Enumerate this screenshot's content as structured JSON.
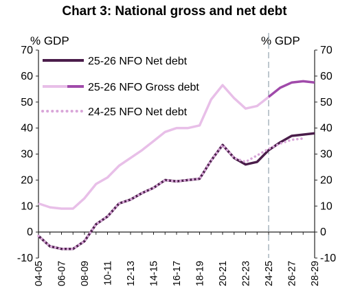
{
  "chart_data": {
    "type": "line",
    "title": "Chart 3: National gross and net debt",
    "y_unit_left": "% GDP",
    "y_unit_right": "% GDP",
    "ylim": [
      -10,
      70
    ],
    "yticks": [
      70,
      60,
      50,
      40,
      30,
      20,
      10,
      0,
      -10
    ],
    "x": [
      "04-05",
      "05-06",
      "06-07",
      "07-08",
      "08-09",
      "09-10",
      "10-11",
      "11-12",
      "12-13",
      "13-14",
      "14-15",
      "15-16",
      "16-17",
      "17-18",
      "18-19",
      "19-20",
      "20-21",
      "21-22",
      "22-23",
      "23-24",
      "24-25",
      "25-26",
      "26-27",
      "27-28",
      "28-29"
    ],
    "x_tick_labels": [
      "04-05",
      "06-07",
      "08-09",
      "10-11",
      "12-13",
      "14-15",
      "16-17",
      "18-19",
      "20-21",
      "22-23",
      "24-25",
      "26-27",
      "28-29"
    ],
    "forecast_divider_at": "24-25",
    "legend_placement": "top-left",
    "grid": false,
    "series": [
      {
        "name": "25-26 NFO Net debt",
        "color": "#4a1d4a",
        "style": "solid",
        "values": [
          -1.5,
          -5.5,
          -6.5,
          -6.5,
          -3.5,
          3,
          6,
          11,
          12.5,
          15,
          17,
          20,
          19.5,
          20,
          20.5,
          27.5,
          33.5,
          28.5,
          26,
          27,
          31.5,
          34.5,
          37,
          37.5,
          38
        ]
      },
      {
        "name": "25-26 NFO Gross debt",
        "color": "#e8bfe8",
        "color_projection": "#a04aaa",
        "projection_from": "24-25",
        "style": "solid",
        "values": [
          11,
          9.5,
          9,
          9,
          13,
          18.5,
          21,
          25.5,
          28.5,
          31.5,
          35,
          38.5,
          40,
          40,
          41,
          51,
          56.5,
          51.5,
          47.5,
          48.5,
          52,
          55.5,
          57.5,
          58,
          57.5
        ]
      },
      {
        "name": "24-25 NFO Net debt",
        "color": "#d9a6d9",
        "style": "dotted",
        "values": [
          -1.5,
          -5.5,
          -6.5,
          -6.5,
          -3.5,
          3,
          6,
          11,
          12.5,
          15,
          17,
          20,
          19.5,
          20,
          20.5,
          27.5,
          33.5,
          28.5,
          27,
          29.5,
          32,
          34,
          35.5,
          36,
          null
        ]
      }
    ]
  }
}
